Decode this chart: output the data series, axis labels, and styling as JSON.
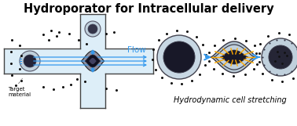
{
  "title": "Hydroporator for Intracellular delivery",
  "title_fontsize": 10.5,
  "title_fontweight": "bold",
  "subtitle": "Hydrodynamic cell stretching",
  "subtitle_fontsize": 7,
  "target_label": "Target\nmaterial",
  "flow_label": "Flow",
  "background": "#ffffff",
  "channel_color": "#ddeef8",
  "channel_border": "#444444",
  "dot_color": "#111111",
  "blue_color": "#3399ee",
  "orange_color": "#ffaa00",
  "gray_cell_outer": "#c8d8e0",
  "gray_cell_inner": "#181828",
  "lw_border": 1.0
}
